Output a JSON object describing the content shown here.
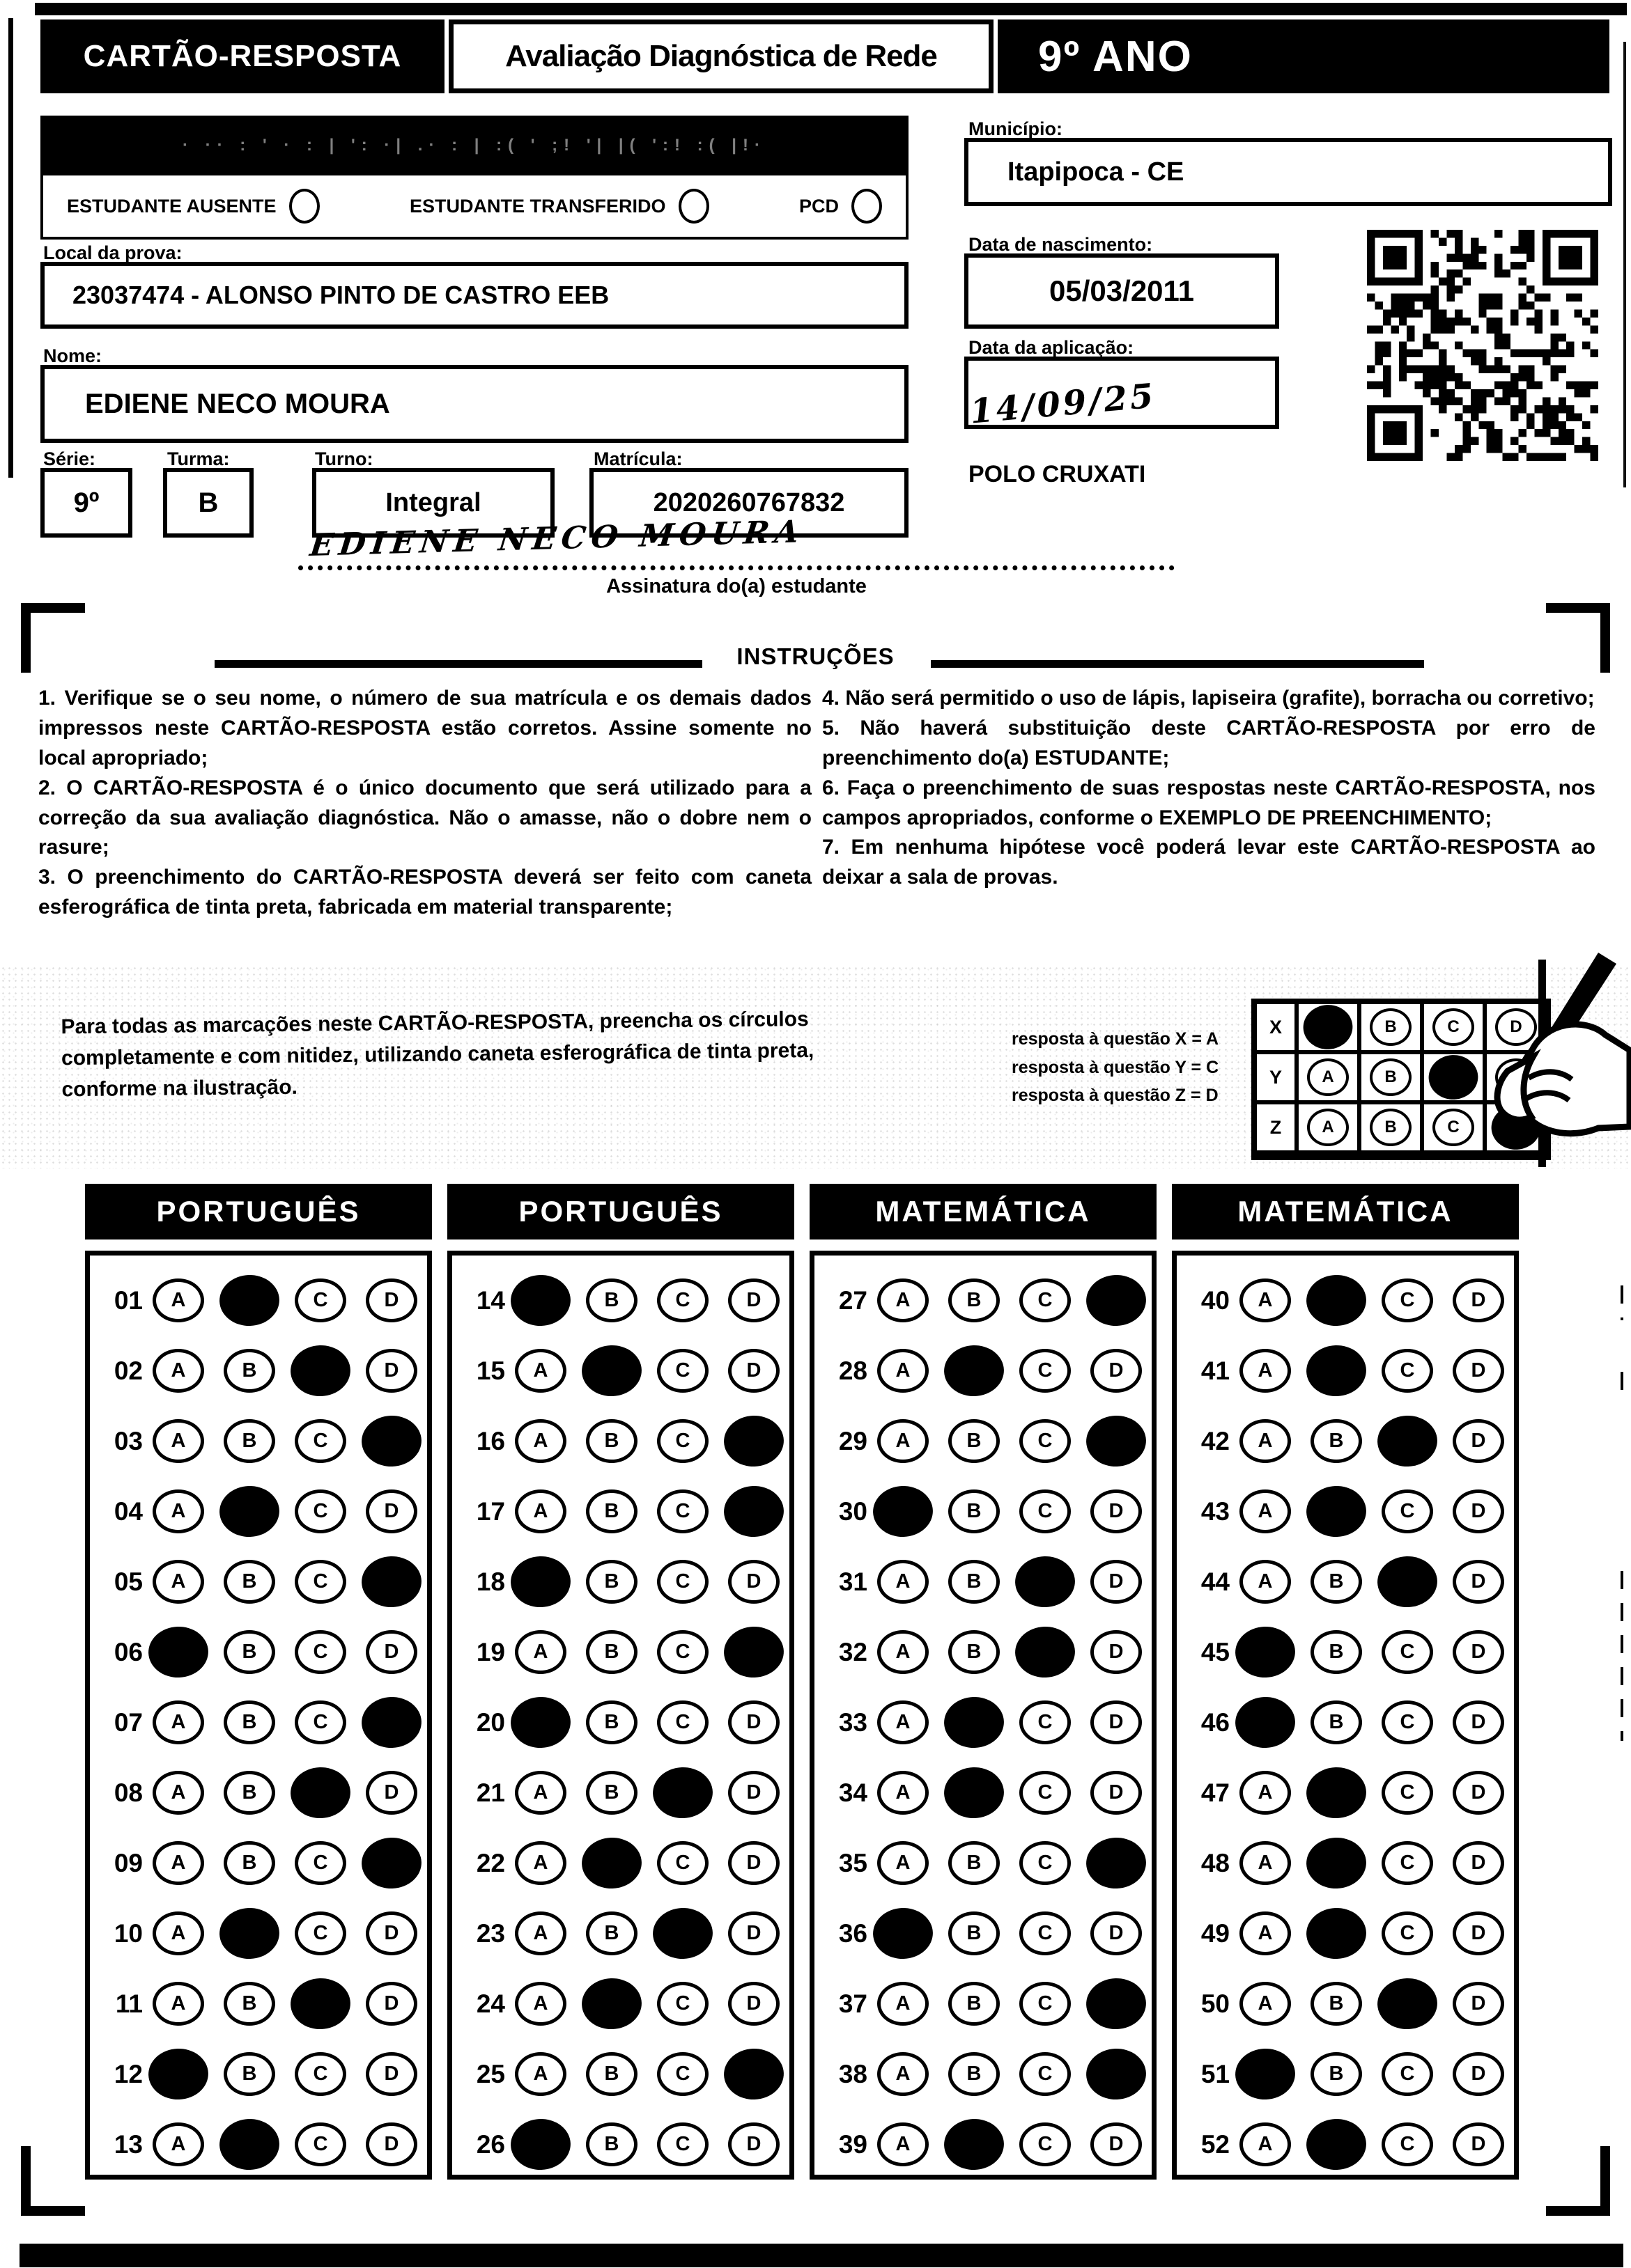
{
  "header": {
    "card_title": "CARTÃO-RESPOSTA",
    "exam_title": "Avaliação Diagnóstica de Rede",
    "grade": "9º ANO"
  },
  "applicator_bar": {
    "text": "· ·· : ' · : | ': ·| .· : | :( ' ;! '| |( ':! :( |!·"
  },
  "status_row": {
    "options": [
      {
        "label": "ESTUDANTE AUSENTE"
      },
      {
        "label": "ESTUDANTE TRANSFERIDO"
      },
      {
        "label": "PCD"
      }
    ]
  },
  "fields": {
    "municipio_label": "Município:",
    "municipio_value": "Itapipoca - CE",
    "local_label": "Local da prova:",
    "local_value": "23037474 - ALONSO PINTO DE CASTRO EEB",
    "nome_label": "Nome:",
    "nome_value": "EDIENE NECO MOURA",
    "serie_label": "Série:",
    "serie_value": "9º",
    "turma_label": "Turma:",
    "turma_value": "B",
    "turno_label": "Turno:",
    "turno_value": "Integral",
    "matricula_label": "Matrícula:",
    "matricula_value": "2020260767832",
    "nascimento_label": "Data de nascimento:",
    "nascimento_value": "05/03/2011",
    "aplicacao_label": "Data da aplicação:",
    "aplicacao_value": "14/09/25",
    "polo": "POLO CRUXATI"
  },
  "signature": {
    "handwritten": "EDIENE NECO MOURA",
    "label": "Assinatura do(a) estudante"
  },
  "instructions": {
    "title": "INSTRUÇÕES",
    "left": [
      "1. Verifique se o seu nome, o número de sua matrícula e os demais dados impressos neste CARTÃO-RESPOSTA estão corretos. Assine somente no local apropriado;",
      "2. O CARTÃO-RESPOSTA é o único documento que será utilizado para a correção da sua avaliação diagnóstica. Não o amasse, não o dobre nem o rasure;",
      "3. O preenchimento do CARTÃO-RESPOSTA deverá ser feito com caneta esferográfica de tinta preta, fabricada em material transparente;"
    ],
    "right": [
      "4. Não será permitido o uso de lápis, lapiseira (grafite), borracha ou corretivo;",
      "5. Não haverá substituição deste CARTÃO-RESPOSTA por erro de preenchimento do(a) ESTUDANTE;",
      "6. Faça o preenchimento de suas respostas neste CARTÃO-RESPOSTA, nos campos apropriados, conforme o EXEMPLO DE PREENCHIMENTO;",
      "7. Em nenhuma hipótese você poderá levar este CARTÃO-RESPOSTA ao deixar a sala de provas."
    ]
  },
  "example": {
    "text": "Para todas as marcações neste CARTÃO-RESPOSTA, preencha os círculos completamente e com nitidez, utilizando caneta esferográfica de tinta preta, conforme na ilustração.",
    "legend": [
      "resposta à questão X = A",
      "resposta à questão Y = C",
      "resposta à questão Z = D"
    ],
    "options": [
      "A",
      "B",
      "C",
      "D"
    ],
    "grid": [
      {
        "label": "X",
        "filled": "A"
      },
      {
        "label": "Y",
        "filled": "C"
      },
      {
        "label": "Z",
        "filled": "D"
      }
    ]
  },
  "answers": {
    "options": [
      "A",
      "B",
      "C",
      "D"
    ],
    "columns": [
      {
        "subject": "PORTUGUÊS",
        "questions": [
          {
            "n": "01",
            "marked": "B"
          },
          {
            "n": "02",
            "marked": "C"
          },
          {
            "n": "03",
            "marked": "D"
          },
          {
            "n": "04",
            "marked": "B"
          },
          {
            "n": "05",
            "marked": "D"
          },
          {
            "n": "06",
            "marked": "A"
          },
          {
            "n": "07",
            "marked": "D"
          },
          {
            "n": "08",
            "marked": "C"
          },
          {
            "n": "09",
            "marked": "D"
          },
          {
            "n": "10",
            "marked": "B"
          },
          {
            "n": "11",
            "marked": "C"
          },
          {
            "n": "12",
            "marked": "A"
          },
          {
            "n": "13",
            "marked": "B"
          }
        ]
      },
      {
        "subject": "PORTUGUÊS",
        "questions": [
          {
            "n": "14",
            "marked": "A"
          },
          {
            "n": "15",
            "marked": "B"
          },
          {
            "n": "16",
            "marked": "D"
          },
          {
            "n": "17",
            "marked": "D"
          },
          {
            "n": "18",
            "marked": "A"
          },
          {
            "n": "19",
            "marked": "D"
          },
          {
            "n": "20",
            "marked": "A"
          },
          {
            "n": "21",
            "marked": "C"
          },
          {
            "n": "22",
            "marked": "B"
          },
          {
            "n": "23",
            "marked": "C"
          },
          {
            "n": "24",
            "marked": "B"
          },
          {
            "n": "25",
            "marked": "D"
          },
          {
            "n": "26",
            "marked": "A"
          }
        ]
      },
      {
        "subject": "MATEMÁTICA",
        "questions": [
          {
            "n": "27",
            "marked": "D"
          },
          {
            "n": "28",
            "marked": "B"
          },
          {
            "n": "29",
            "marked": "D"
          },
          {
            "n": "30",
            "marked": "A"
          },
          {
            "n": "31",
            "marked": "C"
          },
          {
            "n": "32",
            "marked": "C"
          },
          {
            "n": "33",
            "marked": "B"
          },
          {
            "n": "34",
            "marked": "B"
          },
          {
            "n": "35",
            "marked": "D"
          },
          {
            "n": "36",
            "marked": "A"
          },
          {
            "n": "37",
            "marked": "D"
          },
          {
            "n": "38",
            "marked": "D"
          },
          {
            "n": "39",
            "marked": "B"
          }
        ]
      },
      {
        "subject": "MATEMÁTICA",
        "questions": [
          {
            "n": "40",
            "marked": "B"
          },
          {
            "n": "41",
            "marked": "B"
          },
          {
            "n": "42",
            "marked": "C"
          },
          {
            "n": "43",
            "marked": "B"
          },
          {
            "n": "44",
            "marked": "C"
          },
          {
            "n": "45",
            "marked": "A"
          },
          {
            "n": "46",
            "marked": "A"
          },
          {
            "n": "47",
            "marked": "B"
          },
          {
            "n": "48",
            "marked": "B"
          },
          {
            "n": "49",
            "marked": "B"
          },
          {
            "n": "50",
            "marked": "C"
          },
          {
            "n": "51",
            "marked": "A"
          },
          {
            "n": "52",
            "marked": "B"
          }
        ]
      }
    ]
  }
}
